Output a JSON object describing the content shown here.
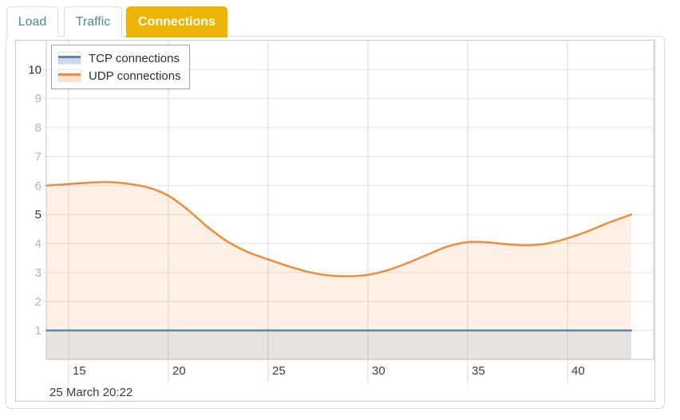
{
  "tabs": [
    {
      "label": "Load",
      "active": false
    },
    {
      "label": "Traffic",
      "active": false
    },
    {
      "label": "Connections",
      "active": true
    }
  ],
  "colors": {
    "active_tab_bg": "#ecb505",
    "active_tab_text": "#ffffff",
    "inactive_tab_text": "#4e8d90",
    "tcp_line": "#5c85b4",
    "udp_line": "#ef8c3a",
    "grid_horizontal": "#e4e4e4",
    "grid_vertical": "#dadada",
    "plot_border": "#c6c6c6"
  },
  "legend": {
    "items": [
      {
        "label": "TCP connections",
        "line_color": "#5c85b4",
        "fill_color": "#ccd9eb"
      },
      {
        "label": "UDP connections",
        "line_color": "#ef8c3a",
        "fill_color": "#fbe2c8"
      }
    ]
  },
  "footer": {
    "timestamp": "25 March 20:22"
  },
  "chart_data": {
    "type": "area",
    "title": "",
    "xlabel": "",
    "ylabel": "",
    "legend_position": "top-left",
    "grid": true,
    "xlim": [
      13.88,
      44.32
    ],
    "ylim": [
      0,
      11
    ],
    "xticks": [
      15,
      20,
      25,
      30,
      35,
      40
    ],
    "yticks": [
      1,
      2,
      3,
      4,
      5,
      6,
      7,
      8,
      9,
      10
    ],
    "ytick_major": [
      5,
      10
    ],
    "series": [
      {
        "name": "TCP connections",
        "color": "#5c85b4",
        "fill_opacity": 0.13,
        "x": [
          13.9,
          43.2
        ],
        "y": [
          1,
          1
        ]
      },
      {
        "name": "UDP connections",
        "color": "#ef8c3a",
        "fill_opacity": 0.13,
        "x": [
          13.9,
          15,
          16,
          17,
          18,
          19,
          20,
          21,
          22,
          23,
          24,
          25,
          26,
          27,
          28,
          29,
          30,
          31,
          32,
          33,
          34,
          35,
          36,
          37,
          38,
          39,
          40,
          41,
          42,
          43.2
        ],
        "y": [
          6.0,
          6.05,
          6.1,
          6.12,
          6.06,
          5.93,
          5.65,
          5.15,
          4.55,
          4.05,
          3.7,
          3.45,
          3.22,
          3.02,
          2.9,
          2.87,
          2.92,
          3.08,
          3.33,
          3.62,
          3.9,
          4.05,
          4.04,
          3.97,
          3.94,
          4.0,
          4.18,
          4.42,
          4.7,
          5.0
        ]
      }
    ]
  }
}
